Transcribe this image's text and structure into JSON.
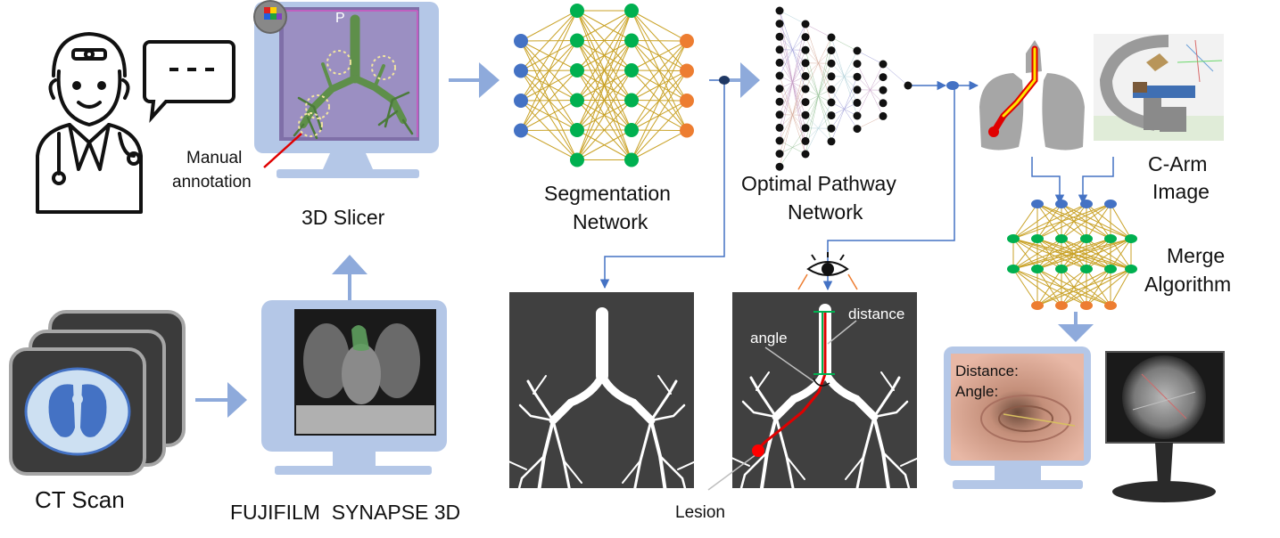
{
  "labels": {
    "slicer_title": "3D Slicer",
    "slicer_view_letter": "P",
    "manual_annotation_line1": "Manual",
    "manual_annotation_line2": "annotation",
    "segmentation_line1": "Segmentation",
    "segmentation_line2": "Network",
    "optimal_line1": "Optimal Pathway",
    "optimal_line2": "Network",
    "carm_line1": "C-Arm",
    "carm_line2": "Image",
    "merge_line1": "Merge",
    "merge_line2": "Algorithm",
    "ct_scan": "CT Scan",
    "fujifilm": "FUJIFILM  SYNAPSE 3D",
    "lesion": "Lesion",
    "angle": "angle",
    "distance": "distance",
    "monitor_distance": "Distance:",
    "monitor_angle": "Angle:"
  },
  "colors": {
    "arrow": "#8eaadb",
    "monitor": "#b4c7e7",
    "node_blue": "#4472c4",
    "node_green": "#00b050",
    "node_orange": "#ed7d31",
    "edge_gold": "#c9a227",
    "lesion_red": "#ff0000",
    "dark_panel": "#404040"
  }
}
